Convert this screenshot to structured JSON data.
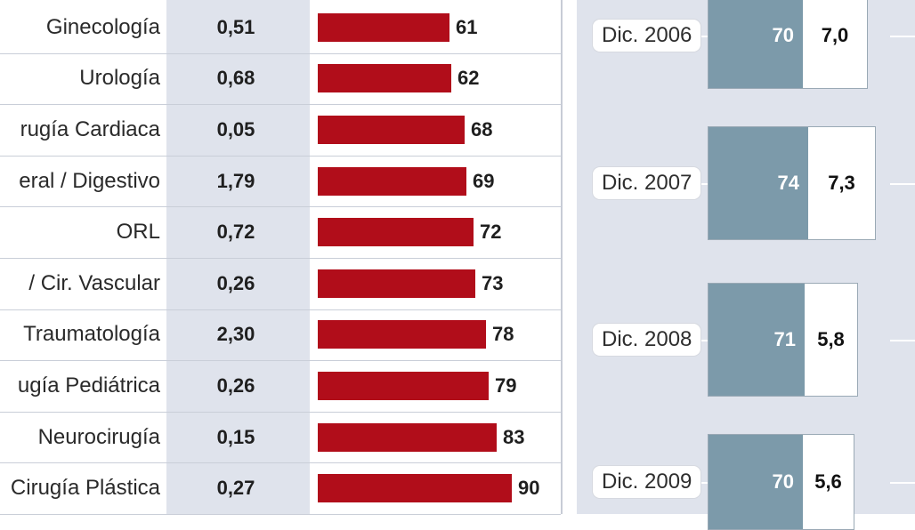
{
  "chart_data": [
    {
      "type": "bar",
      "categories": [
        "Ginecología",
        "Urología",
        "rugía Cardiaca",
        "eral / Digestivo",
        "ORL",
        "/ Cir. Vascular",
        "Traumatología",
        "ugía Pediátrica",
        "Neurocirugía",
        "Cirugía Plástica"
      ],
      "indices": [
        "0,51",
        "0,68",
        "0,05",
        "1,79",
        "0,72",
        "0,26",
        "2,30",
        "0,26",
        "0,15",
        "0,27"
      ],
      "values": [
        61,
        62,
        68,
        69,
        72,
        73,
        78,
        79,
        83,
        90
      ],
      "bar_color": "#b10d1a",
      "title": "",
      "xlabel": "",
      "ylabel": ""
    },
    {
      "type": "bar",
      "categories": [
        "Dic. 2006",
        "Dic. 2007",
        "Dic. 2008",
        "Dic. 2009"
      ],
      "series": [
        {
          "values": [
            70,
            74,
            71,
            70
          ],
          "display": [
            "70",
            "74",
            "71",
            "70"
          ],
          "color": "#7c9aaa"
        },
        {
          "values": [
            7.0,
            7.3,
            5.8,
            5.6
          ],
          "display": [
            "7,0",
            "7,3",
            "5,8",
            "5,6"
          ],
          "color": "#ffffff"
        }
      ],
      "title": "",
      "xlabel": "",
      "ylabel": ""
    }
  ]
}
